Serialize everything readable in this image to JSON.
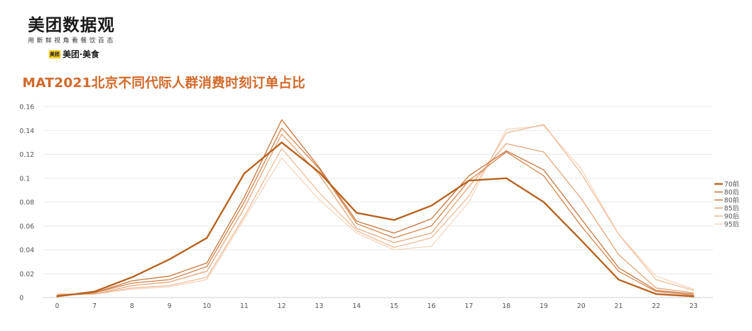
{
  "header": {
    "logo_main": "美团数据观",
    "logo_tagline": "用新鲜视角看餐饮百态",
    "brand_badge": "美团",
    "brand_name": "美团·美食"
  },
  "chart_data": {
    "type": "line",
    "title": "MAT2021北京不同代际人群消费时刻订单占比",
    "xlabel": "",
    "ylabel": "",
    "categories": [
      "0",
      "7",
      "8",
      "9",
      "10",
      "11",
      "12",
      "13",
      "14",
      "15",
      "16",
      "17",
      "18",
      "19",
      "20",
      "21",
      "22",
      "23"
    ],
    "ylim": [
      0,
      0.16
    ],
    "yticks": [
      0,
      0.02,
      0.04,
      0.06,
      0.08,
      0.1,
      0.12,
      0.14,
      0.16
    ],
    "ytick_labels": [
      "0",
      "0.02",
      "0.04",
      "0.06",
      "0.08",
      "0.1",
      "0.12",
      "0.14",
      "0.16"
    ],
    "grid": true,
    "legend_position": "right",
    "series": [
      {
        "name": "70前",
        "color": "#b8621f",
        "width": 2.4,
        "values": [
          0.001,
          0.005,
          0.017,
          0.032,
          0.05,
          0.104,
          0.13,
          0.105,
          0.071,
          0.065,
          0.077,
          0.098,
          0.1,
          0.08,
          0.048,
          0.015,
          0.003,
          0.001
        ]
      },
      {
        "name": "80后",
        "color": "#c8733a",
        "width": 1.3,
        "values": [
          0.001,
          0.004,
          0.014,
          0.018,
          0.029,
          0.084,
          0.149,
          0.109,
          0.064,
          0.054,
          0.066,
          0.102,
          0.123,
          0.107,
          0.066,
          0.025,
          0.006,
          0.003
        ]
      },
      {
        "name": "80前",
        "color": "#d4834a",
        "width": 1.3,
        "values": [
          0.002,
          0.004,
          0.012,
          0.015,
          0.026,
          0.08,
          0.142,
          0.108,
          0.062,
          0.05,
          0.06,
          0.098,
          0.122,
          0.102,
          0.06,
          0.022,
          0.005,
          0.002
        ]
      },
      {
        "name": "85后",
        "color": "#e4a476",
        "width": 1.3,
        "values": [
          0.002,
          0.003,
          0.01,
          0.013,
          0.022,
          0.075,
          0.137,
          0.103,
          0.058,
          0.046,
          0.054,
          0.093,
          0.129,
          0.122,
          0.083,
          0.036,
          0.008,
          0.004
        ]
      },
      {
        "name": "90后",
        "color": "#efbb97",
        "width": 1.3,
        "values": [
          0.003,
          0.003,
          0.008,
          0.01,
          0.017,
          0.068,
          0.125,
          0.088,
          0.056,
          0.042,
          0.05,
          0.085,
          0.138,
          0.145,
          0.104,
          0.053,
          0.015,
          0.006
        ]
      },
      {
        "name": "95后",
        "color": "#f6d5bf",
        "width": 1.3,
        "values": [
          0.003,
          0.003,
          0.007,
          0.009,
          0.015,
          0.066,
          0.117,
          0.082,
          0.054,
          0.04,
          0.043,
          0.08,
          0.141,
          0.144,
          0.108,
          0.053,
          0.018,
          0.007
        ]
      }
    ]
  }
}
